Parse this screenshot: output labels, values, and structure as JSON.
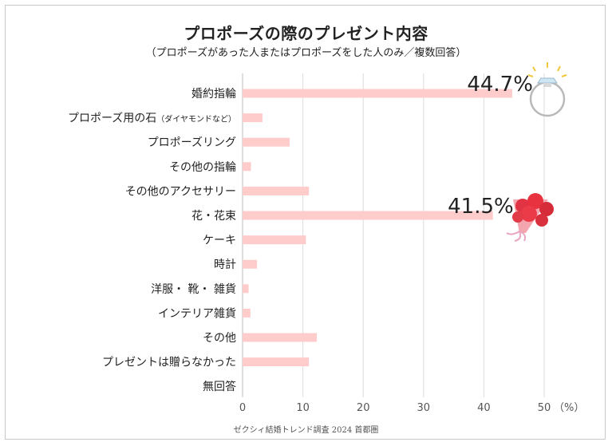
{
  "title": "プロポーズの際のプレゼント内容",
  "subtitle": "（プロポーズがあった人またはプロポーズをした人のみ／複数回答）",
  "source": "ゼクシィ結婚トレンド調査 2024 首都圏",
  "chart_data": {
    "type": "bar",
    "orientation": "horizontal",
    "categories": [
      "婚約指輪",
      "プロポーズ用の石",
      "プロポーズリング",
      "その他の指輪",
      "その他のアクセサリー",
      "花・花束",
      "ケーキ",
      "時計",
      "洋服・ 靴・ 雑貨",
      "インテリア雑貨",
      "その他",
      "プレゼントは贈らなかった",
      "無回答"
    ],
    "category_notes": [
      "",
      "（ダイヤモンドなど）",
      "",
      "",
      "",
      "",
      "",
      "",
      "",
      "",
      "",
      "",
      ""
    ],
    "values": [
      44.7,
      3.3,
      7.8,
      1.4,
      11.0,
      41.5,
      10.5,
      2.4,
      1.0,
      1.3,
      12.3,
      11.0,
      0
    ],
    "xlim": [
      0,
      50
    ],
    "xticks": [
      0,
      10,
      20,
      30,
      40,
      50
    ],
    "xunit": "（%）",
    "gridlines": true,
    "bar_color": "#ffcccc",
    "annotations": [
      {
        "category": "婚約指輪",
        "text": "44.7%",
        "icon": "ring-icon"
      },
      {
        "category": "花・花束",
        "text": "41.5%",
        "icon": "bouquet-icon"
      }
    ]
  }
}
